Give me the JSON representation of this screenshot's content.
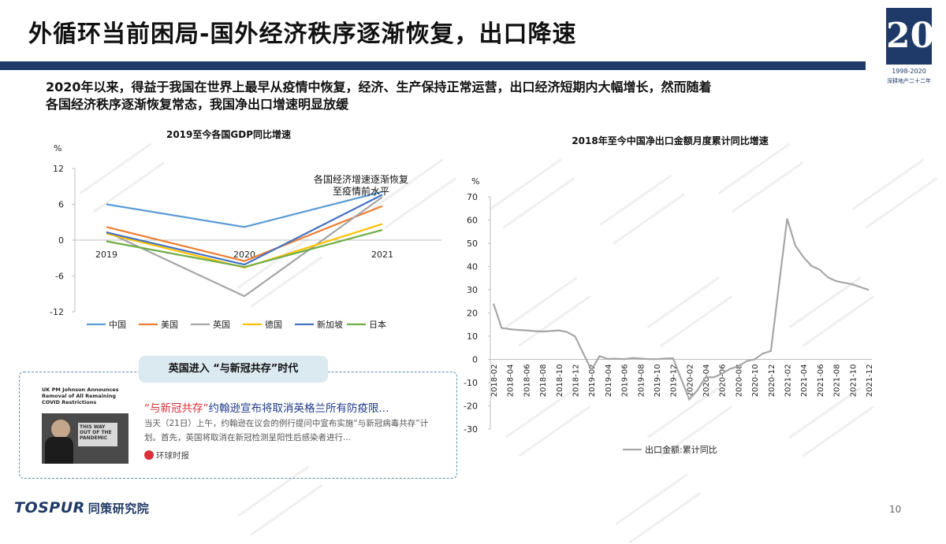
{
  "header": {
    "title": "外循环当前困局-国外经济秩序逐渐恢复，出口降速",
    "logo_number": "20",
    "logo_years": "1998-2020",
    "logo_sub": "深耕地产二十二年"
  },
  "subtitle": {
    "line1": "2020年以来，得益于我国在世界上最早从疫情中恢复，经济、生产保持正常运营，出口经济短期内大幅增长，然而随着",
    "line2": "各国经济秩序逐渐恢复常态，我国净出口增速明显放缓"
  },
  "colors": {
    "navy": "#1f3a68",
    "china": "#5b9bd5",
    "usa": "#ed7d31",
    "uk": "#a5a5a5",
    "germany": "#ffc000",
    "singapore": "#4472c4",
    "japan": "#70ad47",
    "export_line": "#a6a6a6"
  },
  "chart_data": [
    {
      "type": "line",
      "title": "2019至今各国GDP同比增速",
      "ylabel": "%",
      "categories": [
        "2019",
        "2020",
        "2021"
      ],
      "ylim": [
        -12,
        12
      ],
      "yticks": [
        "12",
        "6",
        "0",
        "-6",
        "-12"
      ],
      "annotation_line1": "各国经济增速逐渐恢复",
      "annotation_line2": "至疫情前水平",
      "legend_position": "bottom",
      "series": [
        {
          "name": "中国",
          "values": [
            6.0,
            2.2,
            8.1
          ]
        },
        {
          "name": "美国",
          "values": [
            2.2,
            -3.5,
            5.7
          ]
        },
        {
          "name": "英国",
          "values": [
            1.4,
            -9.4,
            7.2
          ]
        },
        {
          "name": "德国",
          "values": [
            1.1,
            -4.6,
            2.7
          ]
        },
        {
          "name": "新加坡",
          "values": [
            1.3,
            -4.1,
            7.6
          ]
        },
        {
          "name": "日本",
          "values": [
            -0.2,
            -4.5,
            1.7
          ]
        }
      ]
    },
    {
      "type": "line",
      "title": "2018年至今中国净出口金额月度累计同比增速",
      "ylabel": "%",
      "ylim": [
        -30,
        70
      ],
      "yticks": [
        "70",
        "60",
        "50",
        "40",
        "30",
        "20",
        "10",
        "0",
        "-10",
        "-20",
        "-30"
      ],
      "legend_position": "bottom",
      "categories": [
        "2018-02",
        "2018-03",
        "2018-04",
        "2018-05",
        "2018-06",
        "2018-07",
        "2018-08",
        "2018-09",
        "2018-10",
        "2018-11",
        "2018-12",
        "2019-01",
        "2019-02",
        "2019-03",
        "2019-04",
        "2019-05",
        "2019-06",
        "2019-07",
        "2019-08",
        "2019-09",
        "2019-10",
        "2019-11",
        "2019-12",
        "2020-01",
        "2020-02",
        "2020-03",
        "2020-04",
        "2020-05",
        "2020-06",
        "2020-07",
        "2020-08",
        "2020-09",
        "2020-10",
        "2020-11",
        "2020-12",
        "2021-01",
        "2021-02",
        "2021-03",
        "2021-04",
        "2021-05",
        "2021-06",
        "2021-07",
        "2021-08",
        "2021-09",
        "2021-10",
        "2021-11",
        "2021-12"
      ],
      "series": [
        {
          "name": "出口金额:累计同比",
          "values": [
            24,
            13.5,
            13,
            12.7,
            12.5,
            12.2,
            12,
            12.2,
            12.5,
            11.8,
            9.9,
            null,
            -4.6,
            1.4,
            0.2,
            0.3,
            0.1,
            0.6,
            0.4,
            0.1,
            0.1,
            0.4,
            0.5,
            null,
            -17.2,
            -13.3,
            -7.7,
            -7.7,
            -6.2,
            -4.1,
            -3.0,
            -0.8,
            0.0,
            2.5,
            3.6,
            null,
            60.6,
            49.0,
            44.0,
            40.2,
            38.6,
            35.3,
            33.7,
            33.0,
            32.3,
            31.1,
            29.9
          ]
        }
      ],
      "xtick_labels": [
        "2018-02",
        "2018-04",
        "2018-06",
        "2018-08",
        "2018-10",
        "2018-12",
        "2019-02",
        "2019-04",
        "2019-06",
        "2019-08",
        "2019-10",
        "2019-12",
        "2020-02",
        "2020-04",
        "2020-06",
        "2020-08",
        "2020-10",
        "2020-12",
        "2021-02",
        "2021-04",
        "2021-06",
        "2021-08",
        "2021-10",
        "2021-12"
      ]
    }
  ],
  "news": {
    "tag": "英国进入 “与新冠共存”时代",
    "thumb_caption": "UK PM Johnson Announces Removal of All Remaining COVID Restrictions",
    "thumb_sign": "THIS WAY OUT OF THE PANDEMIC",
    "headline_highlight": "“与新冠共存”",
    "headline_rest": "约翰逊宣布将取消英格兰所有防疫限...",
    "body": "当天（21日）上午，约翰逊在议会的例行提问中宣布实施“与新冠病毒共存”计划。首先，英国将取消在新冠检测呈阳性后感染者进行...",
    "source": "环球时报"
  },
  "footer": {
    "brand_en": "TOSPUR",
    "brand_cn": "同策研究院",
    "page_number": "10"
  }
}
